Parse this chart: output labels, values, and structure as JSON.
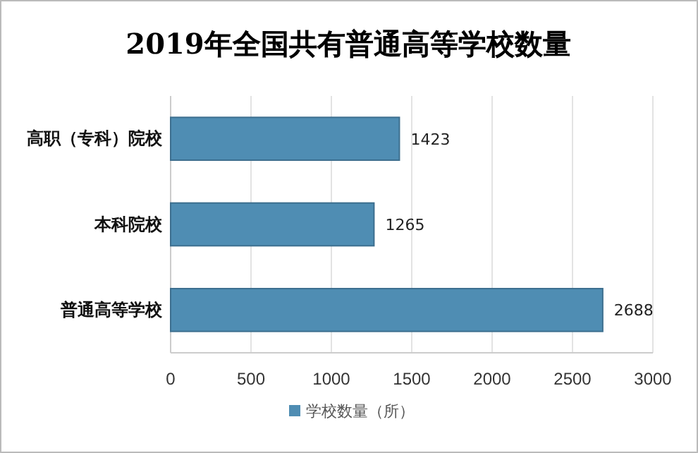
{
  "chart_data": {
    "type": "bar",
    "orientation": "horizontal",
    "title": "2019年全国共有普通高等学校数量",
    "categories": [
      "高职（专科）院校",
      "本科院校",
      "普通高等学校"
    ],
    "series": [
      {
        "name": "学校数量（所）",
        "color": "#4f8db3",
        "values": [
          1423,
          1265,
          2688
        ]
      }
    ],
    "xlim": [
      0,
      3000
    ],
    "xticks": [
      0,
      500,
      1000,
      1500,
      2000,
      2500,
      3000
    ],
    "grid": "x",
    "legend": "bottom",
    "data_labels": true
  }
}
